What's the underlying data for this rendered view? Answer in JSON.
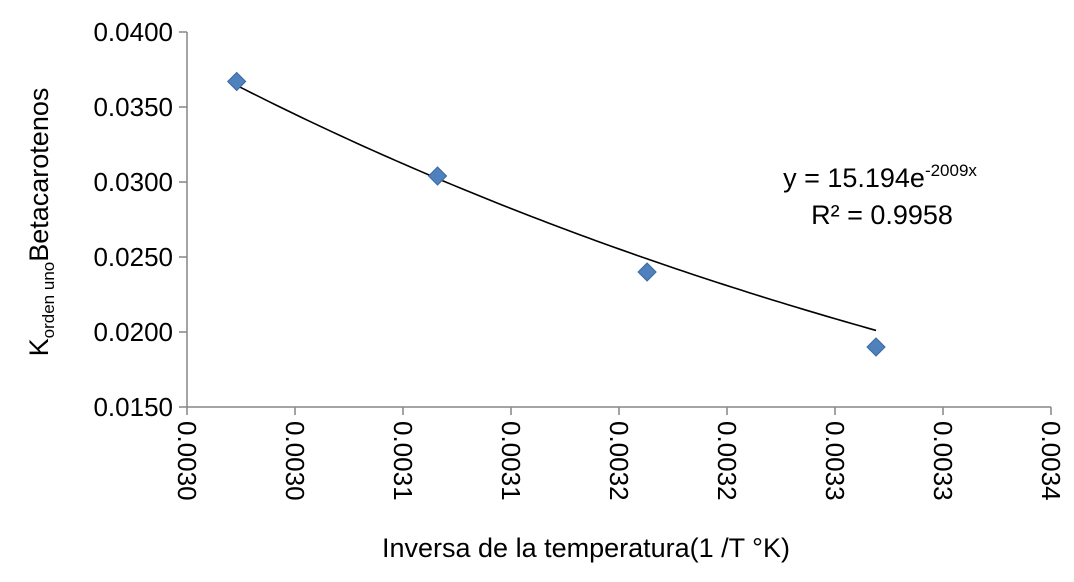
{
  "chart_data": {
    "type": "scatter",
    "title": "",
    "xlabel": "Inversa de la temperatura(1 /T °K)",
    "ylabel": {
      "main": "K",
      "subscript": "orden uno",
      "rest": "Betacarotenos"
    },
    "xlim": [
      0.00298,
      0.00338
    ],
    "ylim": [
      0.015,
      0.04
    ],
    "x_ticks": [
      0.00298,
      0.00303,
      0.00308,
      0.00313,
      0.00318,
      0.00323,
      0.00328,
      0.00333,
      0.00338
    ],
    "x_tick_labels": [
      "0.0030",
      "0.0030",
      "0.0031",
      "0.0031",
      "0.0032",
      "0.0032",
      "0.0033",
      "0.0033",
      "0.0034"
    ],
    "y_ticks": [
      0.015,
      0.02,
      0.025,
      0.03,
      0.035,
      0.04
    ],
    "y_tick_labels": [
      "0.0150",
      "0.0200",
      "0.0250",
      "0.0300",
      "0.0350",
      "0.0400"
    ],
    "grid": false,
    "series": [
      {
        "marker": "diamond",
        "color": "#4F81BD",
        "points": [
          {
            "x": 0.003003,
            "y": 0.0367
          },
          {
            "x": 0.003096,
            "y": 0.0304
          },
          {
            "x": 0.003193,
            "y": 0.024
          },
          {
            "x": 0.003299,
            "y": 0.019
          }
        ]
      }
    ],
    "trendline": {
      "type": "exponential",
      "a": 15.194,
      "b": -2009,
      "color": "#000000"
    },
    "annotation": {
      "equation_prefix": "y = 15.194e",
      "equation_exponent": "-2009x",
      "r2": "R² = 0.9958"
    }
  }
}
